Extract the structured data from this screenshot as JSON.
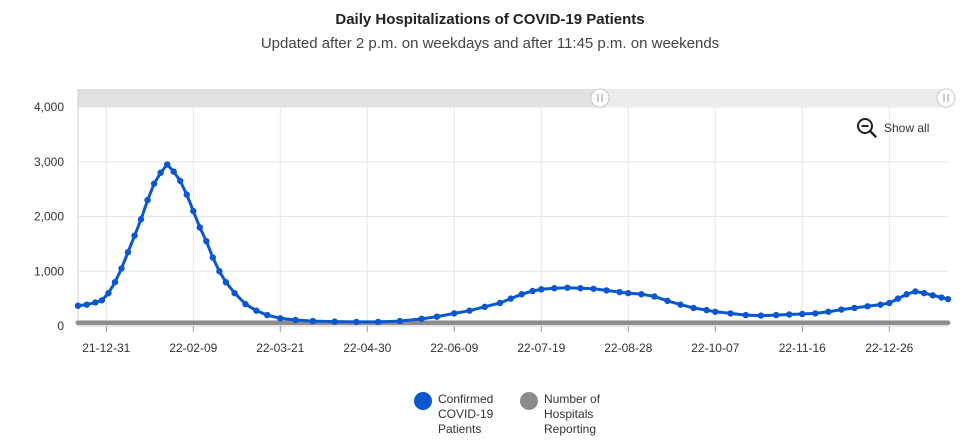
{
  "header": {
    "title": "Daily Hospitalizations of COVID-19 Patients",
    "subtitle": "Updated after 2 p.m. on weekdays and after 11:45 p.m. on weekends"
  },
  "controls": {
    "show_all_label": "Show all",
    "range_slider": {
      "start": 0.6,
      "end": 1.0
    }
  },
  "legend": {
    "items": [
      {
        "label": "Confirmed COVID-19 Patients",
        "color": "#0b57d0"
      },
      {
        "label": "Number of Hospitals Reporting",
        "color": "#8c8c8c"
      }
    ]
  },
  "colors": {
    "confirmed": "#0b57d0",
    "hospitals": "#8c8c8c"
  },
  "chart_data": {
    "type": "scatter",
    "title": "Daily Hospitalizations of COVID-19 Patients",
    "subtitle": "Updated after 2 p.m. on weekdays and after 11:45 p.m. on weekends",
    "xlabel": "",
    "ylabel": "",
    "xlim": [
      "2021-12-18",
      "2023-01-22"
    ],
    "ylim": [
      0,
      4000
    ],
    "y_ticks": [
      0,
      1000,
      2000,
      3000,
      4000
    ],
    "y_tick_labels": [
      "0",
      "1,000",
      "2,000",
      "3,000",
      "4,000"
    ],
    "x_ticks": [
      "2021-12-31",
      "2022-02-09",
      "2022-03-21",
      "2022-04-30",
      "2022-06-09",
      "2022-07-19",
      "2022-08-28",
      "2022-10-07",
      "2022-11-16",
      "2022-12-26"
    ],
    "x_tick_labels": [
      "21-12-31",
      "22-02-09",
      "22-03-21",
      "22-04-30",
      "22-06-09",
      "22-07-19",
      "22-08-28",
      "22-10-07",
      "22-11-16",
      "22-12-26"
    ],
    "grid": true,
    "legend_position": "bottom",
    "series": [
      {
        "name": "Confirmed COVID-19 Patients",
        "color": "#0b57d0",
        "points": [
          [
            "2021-12-18",
            370
          ],
          [
            "2021-12-22",
            390
          ],
          [
            "2021-12-26",
            430
          ],
          [
            "2021-12-29",
            470
          ],
          [
            "2022-01-01",
            600
          ],
          [
            "2022-01-04",
            800
          ],
          [
            "2022-01-07",
            1050
          ],
          [
            "2022-01-10",
            1350
          ],
          [
            "2022-01-13",
            1650
          ],
          [
            "2022-01-16",
            1950
          ],
          [
            "2022-01-19",
            2300
          ],
          [
            "2022-01-22",
            2600
          ],
          [
            "2022-01-25",
            2800
          ],
          [
            "2022-01-28",
            2950
          ],
          [
            "2022-01-31",
            2820
          ],
          [
            "2022-02-03",
            2650
          ],
          [
            "2022-02-06",
            2400
          ],
          [
            "2022-02-09",
            2100
          ],
          [
            "2022-02-12",
            1800
          ],
          [
            "2022-02-15",
            1550
          ],
          [
            "2022-02-18",
            1250
          ],
          [
            "2022-02-21",
            1000
          ],
          [
            "2022-02-24",
            800
          ],
          [
            "2022-02-28",
            600
          ],
          [
            "2022-03-05",
            400
          ],
          [
            "2022-03-10",
            280
          ],
          [
            "2022-03-15",
            200
          ],
          [
            "2022-03-21",
            140
          ],
          [
            "2022-03-28",
            110
          ],
          [
            "2022-04-05",
            90
          ],
          [
            "2022-04-15",
            80
          ],
          [
            "2022-04-25",
            75
          ],
          [
            "2022-05-05",
            75
          ],
          [
            "2022-05-15",
            90
          ],
          [
            "2022-05-25",
            130
          ],
          [
            "2022-06-01",
            170
          ],
          [
            "2022-06-09",
            230
          ],
          [
            "2022-06-16",
            280
          ],
          [
            "2022-06-23",
            350
          ],
          [
            "2022-06-30",
            420
          ],
          [
            "2022-07-05",
            500
          ],
          [
            "2022-07-10",
            580
          ],
          [
            "2022-07-15",
            640
          ],
          [
            "2022-07-19",
            670
          ],
          [
            "2022-07-25",
            690
          ],
          [
            "2022-07-31",
            700
          ],
          [
            "2022-08-06",
            690
          ],
          [
            "2022-08-12",
            680
          ],
          [
            "2022-08-18",
            650
          ],
          [
            "2022-08-24",
            620
          ],
          [
            "2022-08-28",
            600
          ],
          [
            "2022-09-03",
            580
          ],
          [
            "2022-09-09",
            540
          ],
          [
            "2022-09-15",
            460
          ],
          [
            "2022-09-21",
            390
          ],
          [
            "2022-09-27",
            330
          ],
          [
            "2022-10-03",
            290
          ],
          [
            "2022-10-07",
            260
          ],
          [
            "2022-10-14",
            230
          ],
          [
            "2022-10-21",
            200
          ],
          [
            "2022-10-28",
            190
          ],
          [
            "2022-11-04",
            200
          ],
          [
            "2022-11-10",
            210
          ],
          [
            "2022-11-16",
            220
          ],
          [
            "2022-11-22",
            230
          ],
          [
            "2022-11-28",
            260
          ],
          [
            "2022-12-04",
            300
          ],
          [
            "2022-12-10",
            330
          ],
          [
            "2022-12-16",
            360
          ],
          [
            "2022-12-22",
            390
          ],
          [
            "2022-12-26",
            420
          ],
          [
            "2022-12-30",
            500
          ],
          [
            "2023-01-03",
            580
          ],
          [
            "2023-01-07",
            630
          ],
          [
            "2023-01-11",
            600
          ],
          [
            "2023-01-15",
            560
          ],
          [
            "2023-01-19",
            520
          ],
          [
            "2023-01-22",
            490
          ]
        ]
      },
      {
        "name": "Number of Hospitals Reporting",
        "color": "#8c8c8c",
        "constant_value": 60
      }
    ]
  }
}
